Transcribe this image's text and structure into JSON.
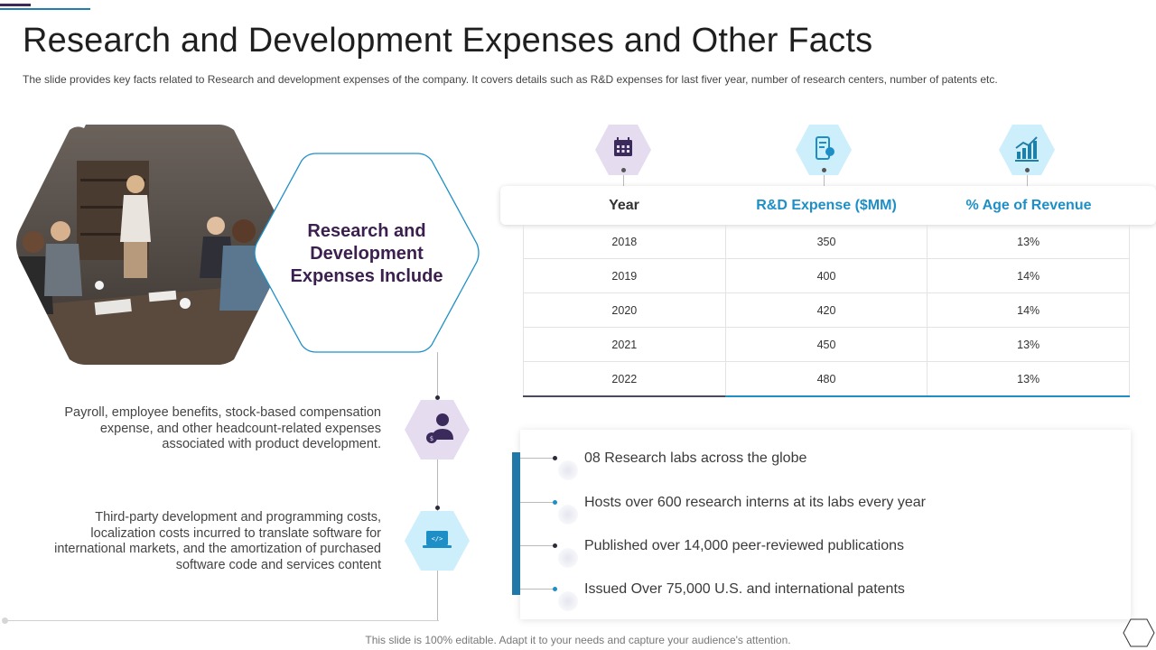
{
  "header": {
    "title": "Research and Development Expenses and Other Facts",
    "subtitle": "The slide provides  key facts related to Research  and development  expenses of the company. It covers  details  such as R&D expenses for last fiver  year, number of research centers, number  of patents etc."
  },
  "left": {
    "hex_heading": "Research and Development Expenses Include",
    "categories": [
      {
        "icon": "employee-payroll-icon",
        "text": "Payroll, employee benefits, stock-based compensation expense, and other headcount-related expenses associated with product development."
      },
      {
        "icon": "laptop-code-icon",
        "text": "Third-party development and programming costs, localization costs incurred to translate software for international markets, and the amortization of purchased software code and services content"
      }
    ]
  },
  "table": {
    "icons": [
      "calendar-icon",
      "mobile-expense-icon",
      "growth-chart-icon"
    ],
    "headers": [
      "Year",
      "R&D Expense ($MM)",
      "% Age of Revenue"
    ],
    "rows": [
      [
        "2018",
        "350",
        "13%"
      ],
      [
        "2019",
        "400",
        "14%"
      ],
      [
        "2020",
        "420",
        "14%"
      ],
      [
        "2021",
        "450",
        "13%"
      ],
      [
        "2022",
        "480",
        "13%"
      ]
    ]
  },
  "facts": [
    "08 Research labs across the globe",
    "Hosts over 600 research interns  at its labs every year",
    "Published over 14,000 peer-reviewed publications",
    "Issued Over 75,000 U.S. and international  patents"
  ],
  "footer": "This slide is 100% editable. Adapt it to your needs and capture your audience's attention.",
  "colors": {
    "purple_dark": "#3b1f4f",
    "blue_accent": "#1e8fc6",
    "lavender": "#e6dcf0",
    "light_blue": "#cdeefb"
  }
}
